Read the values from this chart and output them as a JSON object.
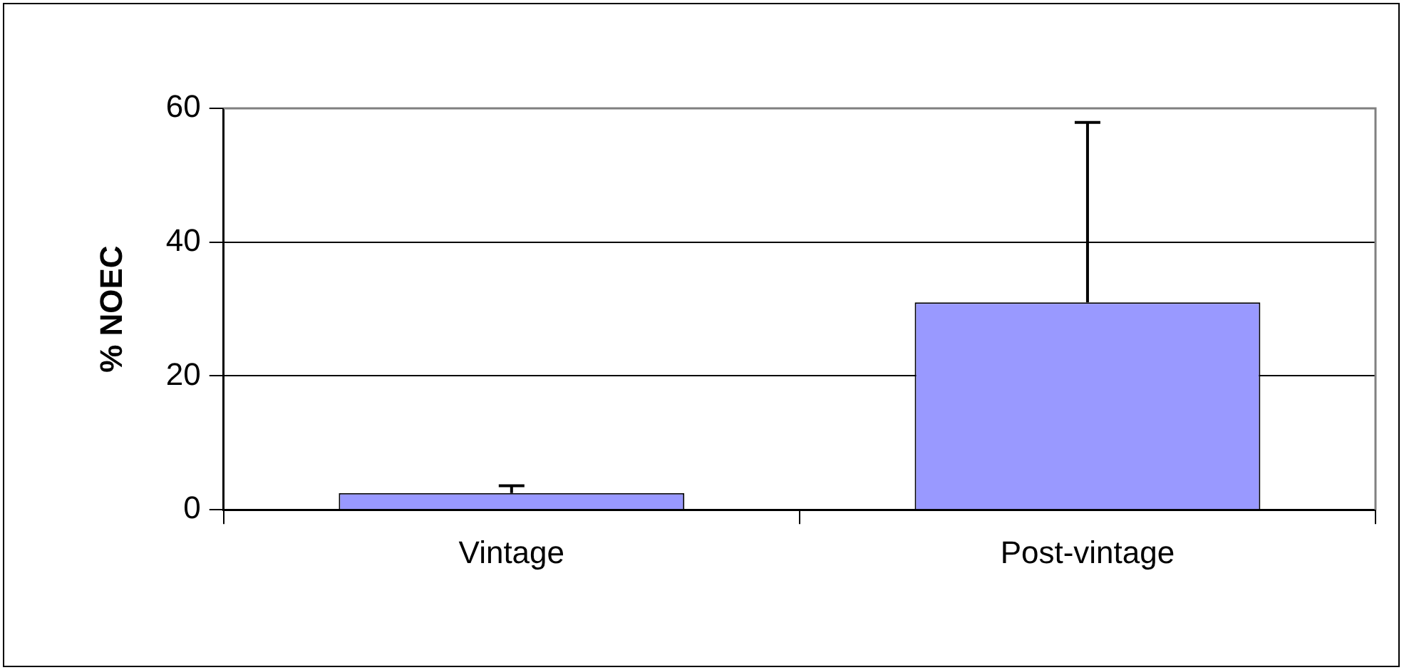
{
  "chart_data": {
    "type": "bar",
    "ylabel": "% NOEC",
    "categories": [
      "Vintage",
      "Post-vintage"
    ],
    "values": [
      2.5,
      31.0
    ],
    "color": "#9999ff",
    "errors": [
      [
        2.5,
        3.6
      ],
      [
        31.0,
        57.9
      ]
    ],
    "ylim": [
      0,
      60
    ],
    "yticks": [
      0,
      20,
      40,
      60
    ],
    "grid": "y",
    "legend": false
  }
}
